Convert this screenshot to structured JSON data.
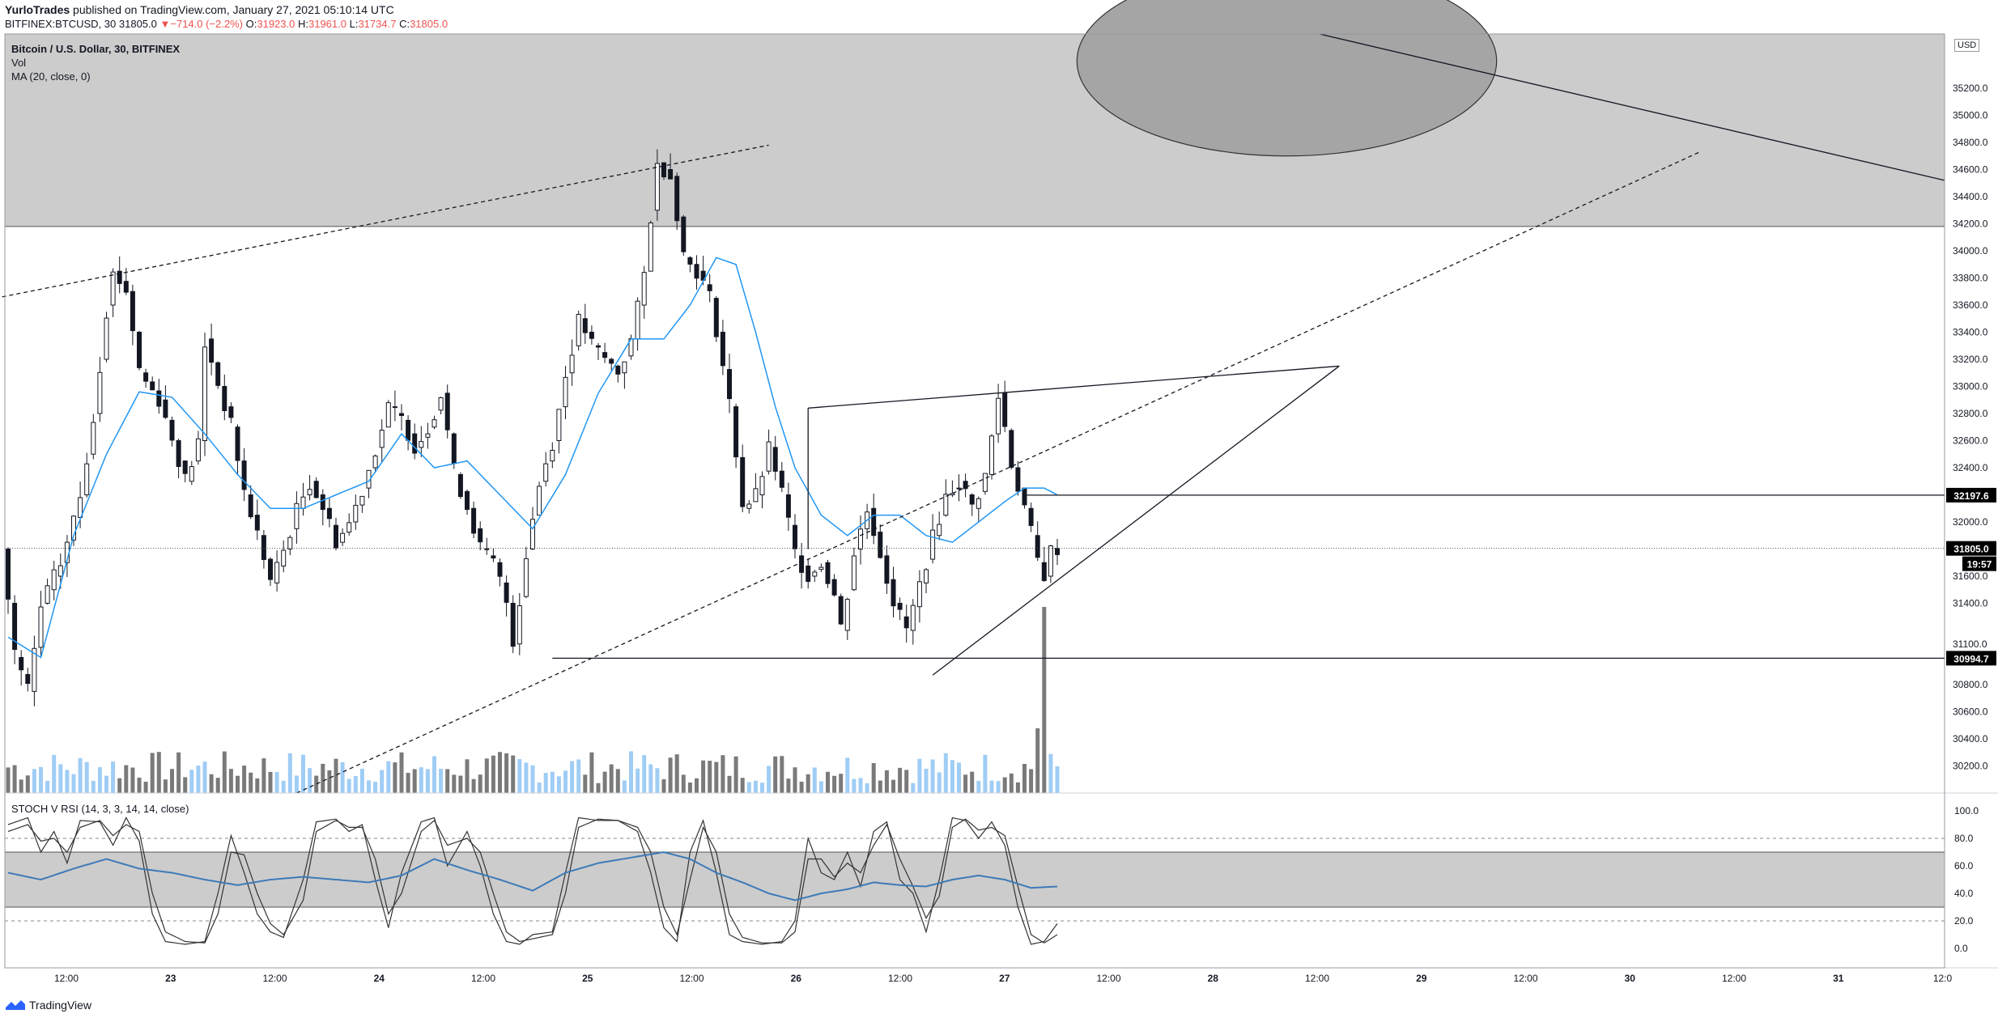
{
  "header": {
    "author": "YurloTrades",
    "published": "published on TradingView.com, January 27, 2021 05:10:14 UTC",
    "symbol": "BITFINEX:BTCUSD, 30",
    "last": "31805.0",
    "change": "−714.0 (−2.2%)",
    "open_label": "O:",
    "open": "31923.0",
    "high_label": "H:",
    "high": "31961.0",
    "low_label": "L:",
    "low": "31734.7",
    "close_label": "C:",
    "close": "31805.0"
  },
  "legend": {
    "title": "Bitcoin / U.S. Dollar, 30, BITFINEX",
    "vol": "Vol",
    "ma": "MA (20, close, 0)"
  },
  "stoch_label": "STOCH V RSI (14, 3, 3, 14, 14, close)",
  "currency": "USD",
  "brand": "TradingView",
  "colors": {
    "candle": "#131722",
    "ma": "#2196f3",
    "rsi": "#3d7ab8",
    "zone": "#cccccc",
    "circle": "#a5a5a5",
    "vol_up": "#9fcdf5",
    "vol_down": "#7a7a7a",
    "label_bg": "#000000"
  },
  "chart_data": {
    "type": "candlestick",
    "ylim": [
      30000,
      35600
    ],
    "price_ticks": [
      "30200.0",
      "30400.0",
      "30600.0",
      "30800.0",
      "31100.0",
      "31400.0",
      "31600.0",
      "32000.0",
      "32400.0",
      "32600.0",
      "32800.0",
      "33000.0",
      "33200.0",
      "33400.0",
      "33600.0",
      "33800.0",
      "34000.0",
      "34200.0",
      "34400.0",
      "34600.0",
      "34800.0",
      "35000.0",
      "35200.0"
    ],
    "time_ticks": [
      "12:00",
      "23",
      "12:00",
      "24",
      "12:00",
      "25",
      "12:00",
      "26",
      "12:00",
      "27",
      "12:00",
      "28",
      "12:00",
      "29",
      "12:00",
      "30",
      "12:00",
      "31",
      "12:0"
    ],
    "price_labels": {
      "level_high": "32197.6",
      "last": "31805.0",
      "countdown": "19:57",
      "level_low": "30994.7"
    },
    "levels": {
      "level_high": 32197.6,
      "last": 31805.0,
      "level_low": 30994.7
    },
    "resistance_zone": [
      34180,
      35600
    ],
    "stoch_ticks": [
      "100.0",
      "80.0",
      "60.0",
      "40.0",
      "20.0",
      "0.0"
    ],
    "stoch_ylim": [
      0,
      100
    ],
    "stoch_bands": [
      20,
      80
    ],
    "rsi_zone": [
      30,
      70
    ],
    "path_anchors": [
      [
        0,
        31800
      ],
      [
        2,
        31000
      ],
      [
        4,
        30750
      ],
      [
        6,
        31400
      ],
      [
        9,
        31700
      ],
      [
        12,
        32200
      ],
      [
        14,
        32800
      ],
      [
        16,
        33600
      ],
      [
        17,
        33850
      ],
      [
        19,
        33700
      ],
      [
        21,
        33100
      ],
      [
        24,
        32900
      ],
      [
        26,
        32600
      ],
      [
        28,
        32300
      ],
      [
        30,
        32600
      ],
      [
        31,
        33350
      ],
      [
        33,
        33000
      ],
      [
        35,
        32700
      ],
      [
        37,
        32200
      ],
      [
        39,
        31900
      ],
      [
        41,
        31550
      ],
      [
        43,
        31800
      ],
      [
        45,
        32100
      ],
      [
        47,
        32300
      ],
      [
        49,
        32100
      ],
      [
        51,
        31850
      ],
      [
        53,
        32000
      ],
      [
        55,
        32250
      ],
      [
        57,
        32550
      ],
      [
        59,
        32850
      ],
      [
        61,
        32750
      ],
      [
        63,
        32550
      ],
      [
        65,
        32700
      ],
      [
        67,
        32950
      ],
      [
        69,
        32350
      ],
      [
        71,
        32100
      ],
      [
        73,
        31800
      ],
      [
        75,
        31700
      ],
      [
        77,
        31400
      ],
      [
        78,
        31100
      ],
      [
        80,
        31800
      ],
      [
        82,
        32300
      ],
      [
        84,
        32600
      ],
      [
        86,
        33100
      ],
      [
        88,
        33500
      ],
      [
        90,
        33300
      ],
      [
        92,
        33200
      ],
      [
        94,
        33100
      ],
      [
        96,
        33350
      ],
      [
        98,
        33850
      ],
      [
        99,
        34300
      ],
      [
        100,
        34650
      ],
      [
        102,
        34550
      ],
      [
        104,
        33950
      ],
      [
        106,
        33850
      ],
      [
        108,
        33650
      ],
      [
        109,
        33400
      ],
      [
        111,
        32850
      ],
      [
        113,
        32100
      ],
      [
        115,
        32200
      ],
      [
        117,
        32550
      ],
      [
        119,
        32200
      ],
      [
        121,
        31750
      ],
      [
        123,
        31600
      ],
      [
        125,
        31700
      ],
      [
        127,
        31450
      ],
      [
        128,
        31200
      ],
      [
        130,
        31800
      ],
      [
        132,
        32100
      ],
      [
        134,
        31750
      ],
      [
        136,
        31400
      ],
      [
        138,
        31200
      ],
      [
        140,
        31550
      ],
      [
        142,
        31900
      ],
      [
        144,
        32200
      ],
      [
        146,
        32300
      ],
      [
        148,
        32100
      ],
      [
        150,
        32350
      ],
      [
        152,
        32950
      ],
      [
        154,
        32400
      ],
      [
        156,
        32100
      ],
      [
        158,
        31700
      ],
      [
        159,
        31600
      ],
      [
        160,
        31805
      ]
    ],
    "ma_anchors": [
      [
        0,
        31150
      ],
      [
        5,
        31000
      ],
      [
        10,
        31900
      ],
      [
        15,
        32500
      ],
      [
        20,
        32960
      ],
      [
        25,
        32920
      ],
      [
        30,
        32650
      ],
      [
        35,
        32350
      ],
      [
        40,
        32100
      ],
      [
        45,
        32100
      ],
      [
        50,
        32200
      ],
      [
        55,
        32300
      ],
      [
        60,
        32650
      ],
      [
        65,
        32400
      ],
      [
        70,
        32450
      ],
      [
        75,
        32200
      ],
      [
        80,
        31950
      ],
      [
        85,
        32350
      ],
      [
        90,
        32950
      ],
      [
        95,
        33350
      ],
      [
        100,
        33350
      ],
      [
        104,
        33600
      ],
      [
        108,
        33950
      ],
      [
        111,
        33900
      ],
      [
        114,
        33400
      ],
      [
        117,
        32850
      ],
      [
        120,
        32400
      ],
      [
        124,
        32050
      ],
      [
        128,
        31900
      ],
      [
        132,
        32050
      ],
      [
        136,
        32050
      ],
      [
        140,
        31900
      ],
      [
        144,
        31850
      ],
      [
        148,
        32000
      ],
      [
        152,
        32150
      ],
      [
        155,
        32250
      ],
      [
        158,
        32250
      ],
      [
        160,
        32200
      ]
    ],
    "stoch_k_anchors": [
      [
        0,
        90
      ],
      [
        3,
        95
      ],
      [
        5,
        70
      ],
      [
        7,
        85
      ],
      [
        9,
        62
      ],
      [
        11,
        93
      ],
      [
        14,
        92
      ],
      [
        16,
        75
      ],
      [
        18,
        95
      ],
      [
        20,
        78
      ],
      [
        22,
        25
      ],
      [
        24,
        5
      ],
      [
        27,
        3
      ],
      [
        30,
        5
      ],
      [
        32,
        40
      ],
      [
        34,
        82
      ],
      [
        36,
        55
      ],
      [
        38,
        25
      ],
      [
        40,
        12
      ],
      [
        42,
        8
      ],
      [
        45,
        50
      ],
      [
        47,
        92
      ],
      [
        50,
        94
      ],
      [
        52,
        85
      ],
      [
        54,
        90
      ],
      [
        56,
        50
      ],
      [
        58,
        15
      ],
      [
        60,
        55
      ],
      [
        63,
        92
      ],
      [
        65,
        95
      ],
      [
        67,
        60
      ],
      [
        70,
        85
      ],
      [
        72,
        60
      ],
      [
        74,
        25
      ],
      [
        76,
        5
      ],
      [
        78,
        3
      ],
      [
        80,
        10
      ],
      [
        83,
        12
      ],
      [
        85,
        55
      ],
      [
        87,
        95
      ],
      [
        90,
        93
      ],
      [
        93,
        93
      ],
      [
        96,
        85
      ],
      [
        98,
        55
      ],
      [
        100,
        15
      ],
      [
        102,
        5
      ],
      [
        104,
        70
      ],
      [
        106,
        93
      ],
      [
        108,
        55
      ],
      [
        110,
        10
      ],
      [
        112,
        5
      ],
      [
        115,
        3
      ],
      [
        118,
        5
      ],
      [
        120,
        20
      ],
      [
        122,
        80
      ],
      [
        124,
        55
      ],
      [
        126,
        50
      ],
      [
        128,
        70
      ],
      [
        130,
        45
      ],
      [
        132,
        85
      ],
      [
        134,
        92
      ],
      [
        136,
        50
      ],
      [
        138,
        40
      ],
      [
        140,
        12
      ],
      [
        142,
        50
      ],
      [
        144,
        95
      ],
      [
        146,
        93
      ],
      [
        148,
        80
      ],
      [
        150,
        92
      ],
      [
        152,
        75
      ],
      [
        154,
        30
      ],
      [
        156,
        3
      ],
      [
        158,
        5
      ],
      [
        160,
        18
      ]
    ],
    "stoch_d_anchors": [
      [
        0,
        85
      ],
      [
        3,
        90
      ],
      [
        5,
        78
      ],
      [
        7,
        80
      ],
      [
        9,
        70
      ],
      [
        11,
        88
      ],
      [
        14,
        93
      ],
      [
        16,
        82
      ],
      [
        18,
        90
      ],
      [
        20,
        85
      ],
      [
        22,
        40
      ],
      [
        24,
        12
      ],
      [
        27,
        5
      ],
      [
        30,
        4
      ],
      [
        32,
        25
      ],
      [
        34,
        70
      ],
      [
        36,
        68
      ],
      [
        38,
        40
      ],
      [
        40,
        18
      ],
      [
        42,
        10
      ],
      [
        45,
        35
      ],
      [
        47,
        85
      ],
      [
        50,
        93
      ],
      [
        52,
        88
      ],
      [
        54,
        88
      ],
      [
        56,
        65
      ],
      [
        58,
        25
      ],
      [
        60,
        40
      ],
      [
        63,
        85
      ],
      [
        65,
        93
      ],
      [
        67,
        75
      ],
      [
        70,
        80
      ],
      [
        72,
        70
      ],
      [
        74,
        40
      ],
      [
        76,
        12
      ],
      [
        78,
        5
      ],
      [
        80,
        7
      ],
      [
        83,
        10
      ],
      [
        85,
        40
      ],
      [
        87,
        88
      ],
      [
        90,
        94
      ],
      [
        93,
        93
      ],
      [
        96,
        88
      ],
      [
        98,
        70
      ],
      [
        100,
        30
      ],
      [
        102,
        10
      ],
      [
        104,
        50
      ],
      [
        106,
        88
      ],
      [
        108,
        70
      ],
      [
        110,
        25
      ],
      [
        112,
        8
      ],
      [
        115,
        4
      ],
      [
        118,
        4
      ],
      [
        120,
        12
      ],
      [
        122,
        65
      ],
      [
        124,
        65
      ],
      [
        126,
        52
      ],
      [
        128,
        62
      ],
      [
        130,
        55
      ],
      [
        132,
        75
      ],
      [
        134,
        90
      ],
      [
        136,
        65
      ],
      [
        138,
        45
      ],
      [
        140,
        22
      ],
      [
        142,
        38
      ],
      [
        144,
        88
      ],
      [
        146,
        94
      ],
      [
        148,
        86
      ],
      [
        150,
        88
      ],
      [
        152,
        82
      ],
      [
        154,
        45
      ],
      [
        156,
        10
      ],
      [
        158,
        4
      ],
      [
        160,
        10
      ]
    ],
    "rsi_anchors": [
      [
        0,
        55
      ],
      [
        5,
        50
      ],
      [
        10,
        58
      ],
      [
        15,
        65
      ],
      [
        20,
        58
      ],
      [
        25,
        55
      ],
      [
        30,
        50
      ],
      [
        35,
        46
      ],
      [
        40,
        50
      ],
      [
        45,
        52
      ],
      [
        50,
        50
      ],
      [
        55,
        48
      ],
      [
        60,
        53
      ],
      [
        65,
        65
      ],
      [
        70,
        57
      ],
      [
        75,
        50
      ],
      [
        80,
        42
      ],
      [
        85,
        55
      ],
      [
        90,
        62
      ],
      [
        95,
        66
      ],
      [
        100,
        70
      ],
      [
        104,
        65
      ],
      [
        108,
        55
      ],
      [
        112,
        48
      ],
      [
        116,
        40
      ],
      [
        120,
        35
      ],
      [
        124,
        40
      ],
      [
        128,
        43
      ],
      [
        132,
        48
      ],
      [
        136,
        46
      ],
      [
        140,
        45
      ],
      [
        144,
        50
      ],
      [
        148,
        53
      ],
      [
        152,
        50
      ],
      [
        156,
        44
      ],
      [
        160,
        45
      ]
    ],
    "trendlines": [
      {
        "style": "dashed",
        "from": [
          -2,
          33650
        ],
        "to": [
          116,
          34780
        ]
      },
      {
        "style": "dashed",
        "from": [
          44,
          30000
        ],
        "to": [
          258,
          34730
        ]
      },
      {
        "style": "solid",
        "from": [
          122,
          32840
        ],
        "to": [
          203,
          33150
        ]
      },
      {
        "style": "solid",
        "from": [
          141,
          30870
        ],
        "to": [
          203,
          33150
        ]
      },
      {
        "style": "solid",
        "from": [
          200,
          35600
        ],
        "to": [
          305,
          34520
        ]
      },
      {
        "style": "solid",
        "from": [
          83,
          30994.7
        ],
        "to": [
          305,
          30994.7
        ]
      },
      {
        "style": "solid",
        "from": [
          122,
          32840
        ],
        "to": [
          122,
          31800
        ]
      },
      {
        "style": "solid",
        "from": [
          155,
          32197.6
        ],
        "to": [
          305,
          32197.6
        ]
      }
    ],
    "circle": {
      "cx": 195,
      "cy": 35400,
      "rx": 32,
      "ry_price": 700
    }
  }
}
